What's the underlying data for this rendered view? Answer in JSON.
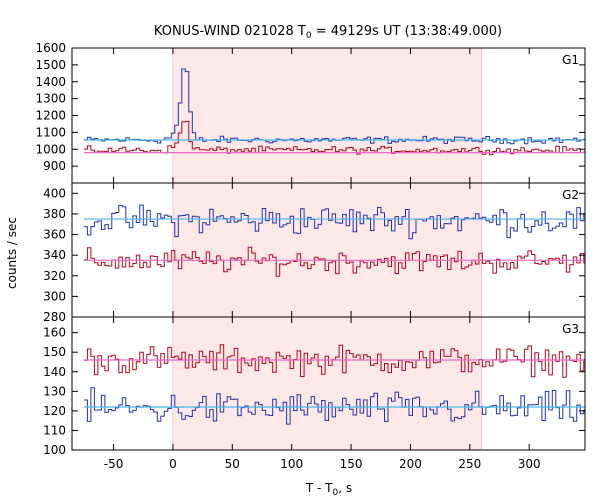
{
  "chart_data": {
    "type": "line",
    "title_main": "KONUS-WIND 021028 T",
    "title_sub": "0",
    "title_rest": " = 49129s UT (13:38:49.000)",
    "xlabel_main": "T - T",
    "xlabel_sub": "0",
    "xlabel_rest": ", s",
    "ylabel": "counts / sec",
    "xlim": [
      -85,
      347
    ],
    "x_ticks": [
      -50,
      0,
      50,
      100,
      150,
      200,
      250,
      300
    ],
    "x_tick_labels": [
      "-50",
      "0",
      "50",
      "100",
      "150",
      "200",
      "250",
      "300"
    ],
    "highlight_interval": [
      0,
      260
    ],
    "colors": {
      "highlight": "#fde8e8",
      "series_blue": "#2233aa",
      "series_red": "#aa0a1e",
      "series_blue_fit": "#4ab4e8",
      "series_red_fit": "#ee66cc",
      "frame": "#000000"
    },
    "panels": [
      {
        "label": "G1",
        "ylim": [
          800,
          1600
        ],
        "y_ticks": [
          900,
          1000,
          1100,
          1200,
          1300,
          1400,
          1500,
          1600
        ],
        "y_tick_labels": [
          "900",
          "1000",
          "1100",
          "1200",
          "1300",
          "1400",
          "1500",
          "1600"
        ],
        "series": [
          {
            "role": "blue",
            "background": 1055,
            "noise": 14,
            "peak": [
              {
                "t": 9,
                "amp": 390,
                "width": 3
              },
              {
                "t": 5,
                "amp": 90,
                "width": 5
              }
            ]
          },
          {
            "role": "red",
            "background": 995,
            "noise": 14,
            "peak": [
              {
                "t": 9,
                "amp": 160,
                "width": 3
              },
              {
                "t": 5,
                "amp": 40,
                "width": 5
              }
            ]
          },
          {
            "role": "blue_fit",
            "background": 1055
          },
          {
            "role": "red_fit",
            "background": 980
          }
        ]
      },
      {
        "label": "G2",
        "ylim": [
          280,
          410
        ],
        "y_ticks": [
          280,
          300,
          320,
          340,
          360,
          380,
          400
        ],
        "y_tick_labels": [
          "280",
          "300",
          "320",
          "340",
          "360",
          "380",
          "400"
        ],
        "series": [
          {
            "role": "blue",
            "background": 374,
            "noise": 10
          },
          {
            "role": "red",
            "background": 334,
            "noise": 8
          },
          {
            "role": "blue_fit",
            "background": 375
          },
          {
            "role": "red_fit",
            "background": 335
          }
        ]
      },
      {
        "label": "G3",
        "ylim": [
          100,
          168
        ],
        "y_ticks": [
          100,
          110,
          120,
          130,
          140,
          150,
          160
        ],
        "y_tick_labels": [
          "100",
          "110",
          "120",
          "130",
          "140",
          "150",
          "160"
        ],
        "series": [
          {
            "role": "red",
            "background": 146,
            "noise": 5
          },
          {
            "role": "blue",
            "background": 121,
            "noise": 6
          },
          {
            "role": "red_fit",
            "background": 146
          },
          {
            "role": "blue_fit",
            "background": 122
          }
        ]
      }
    ],
    "step_seconds": 2.944
  }
}
